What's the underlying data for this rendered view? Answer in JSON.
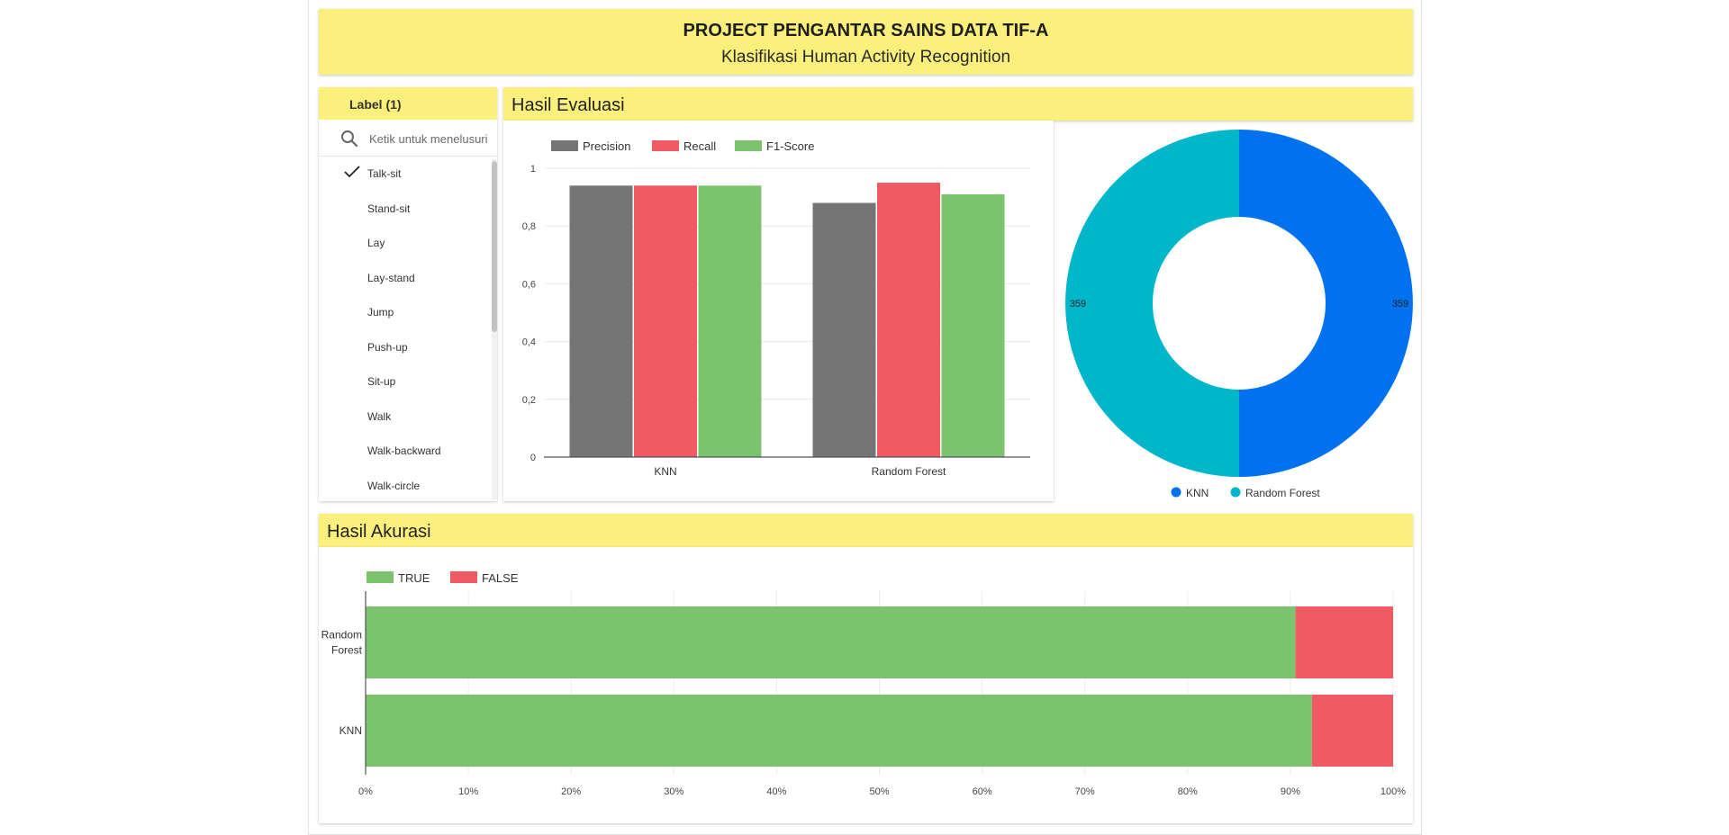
{
  "header": {
    "title": "PROJECT PENGANTAR SAINS DATA TIF-A",
    "subtitle": "Klasifikasi Human Activity Recognition"
  },
  "filter": {
    "title": "Label (1)",
    "search_placeholder": "Ketik untuk menelusuri",
    "search_icon": "search-icon",
    "check_icon": "check-icon",
    "items": [
      {
        "label": "Talk-sit",
        "checked": true
      },
      {
        "label": "Stand-sit",
        "checked": false
      },
      {
        "label": "Lay",
        "checked": false
      },
      {
        "label": "Lay-stand",
        "checked": false
      },
      {
        "label": "Jump",
        "checked": false
      },
      {
        "label": "Push-up",
        "checked": false
      },
      {
        "label": "Sit-up",
        "checked": false
      },
      {
        "label": "Walk",
        "checked": false
      },
      {
        "label": "Walk-backward",
        "checked": false
      },
      {
        "label": "Walk-circle",
        "checked": false
      }
    ]
  },
  "evaluation": {
    "title": "Hasil Evaluasi"
  },
  "accuracy": {
    "title": "Hasil Akurasi"
  },
  "colors": {
    "header_bg": "#fcf07c",
    "precision": "#757575",
    "recall": "#f05a62",
    "f1": "#7bc46d",
    "knn": "#0072f0",
    "random_forest": "#00b6cb",
    "true": "#7bc46d",
    "false": "#f05a62"
  },
  "chart_data": [
    {
      "type": "bar",
      "categories": [
        "KNN",
        "Random Forest"
      ],
      "series": [
        {
          "name": "Precision",
          "values": [
            0.94,
            0.88
          ]
        },
        {
          "name": "Recall",
          "values": [
            0.94,
            0.95
          ]
        },
        {
          "name": "F1-Score",
          "values": [
            0.94,
            0.91
          ]
        }
      ],
      "yticks": [
        "0",
        "0,2",
        "0,4",
        "0,6",
        "0,8",
        "1"
      ],
      "ylim": [
        0,
        1
      ],
      "grid": true,
      "legend": "top-left"
    },
    {
      "type": "pie",
      "donut": true,
      "labels": [
        "KNN",
        "Random Forest"
      ],
      "values": [
        359,
        359
      ],
      "value_labels": [
        "359",
        "359"
      ],
      "legend": "bottom"
    },
    {
      "type": "bar",
      "orientation": "horizontal",
      "stacked": true,
      "percent": true,
      "categories": [
        "Random Forest",
        "KNN"
      ],
      "category_lines": [
        [
          "Random",
          "Forest"
        ],
        [
          "KNN"
        ]
      ],
      "series": [
        {
          "name": "TRUE",
          "values": [
            0.905,
            0.921
          ]
        },
        {
          "name": "FALSE",
          "values": [
            0.095,
            0.079
          ]
        }
      ],
      "xticks": [
        "0%",
        "10%",
        "20%",
        "30%",
        "40%",
        "50%",
        "60%",
        "70%",
        "80%",
        "90%",
        "100%"
      ],
      "xlim": [
        0,
        1
      ],
      "grid": true,
      "legend": "top-left"
    }
  ]
}
